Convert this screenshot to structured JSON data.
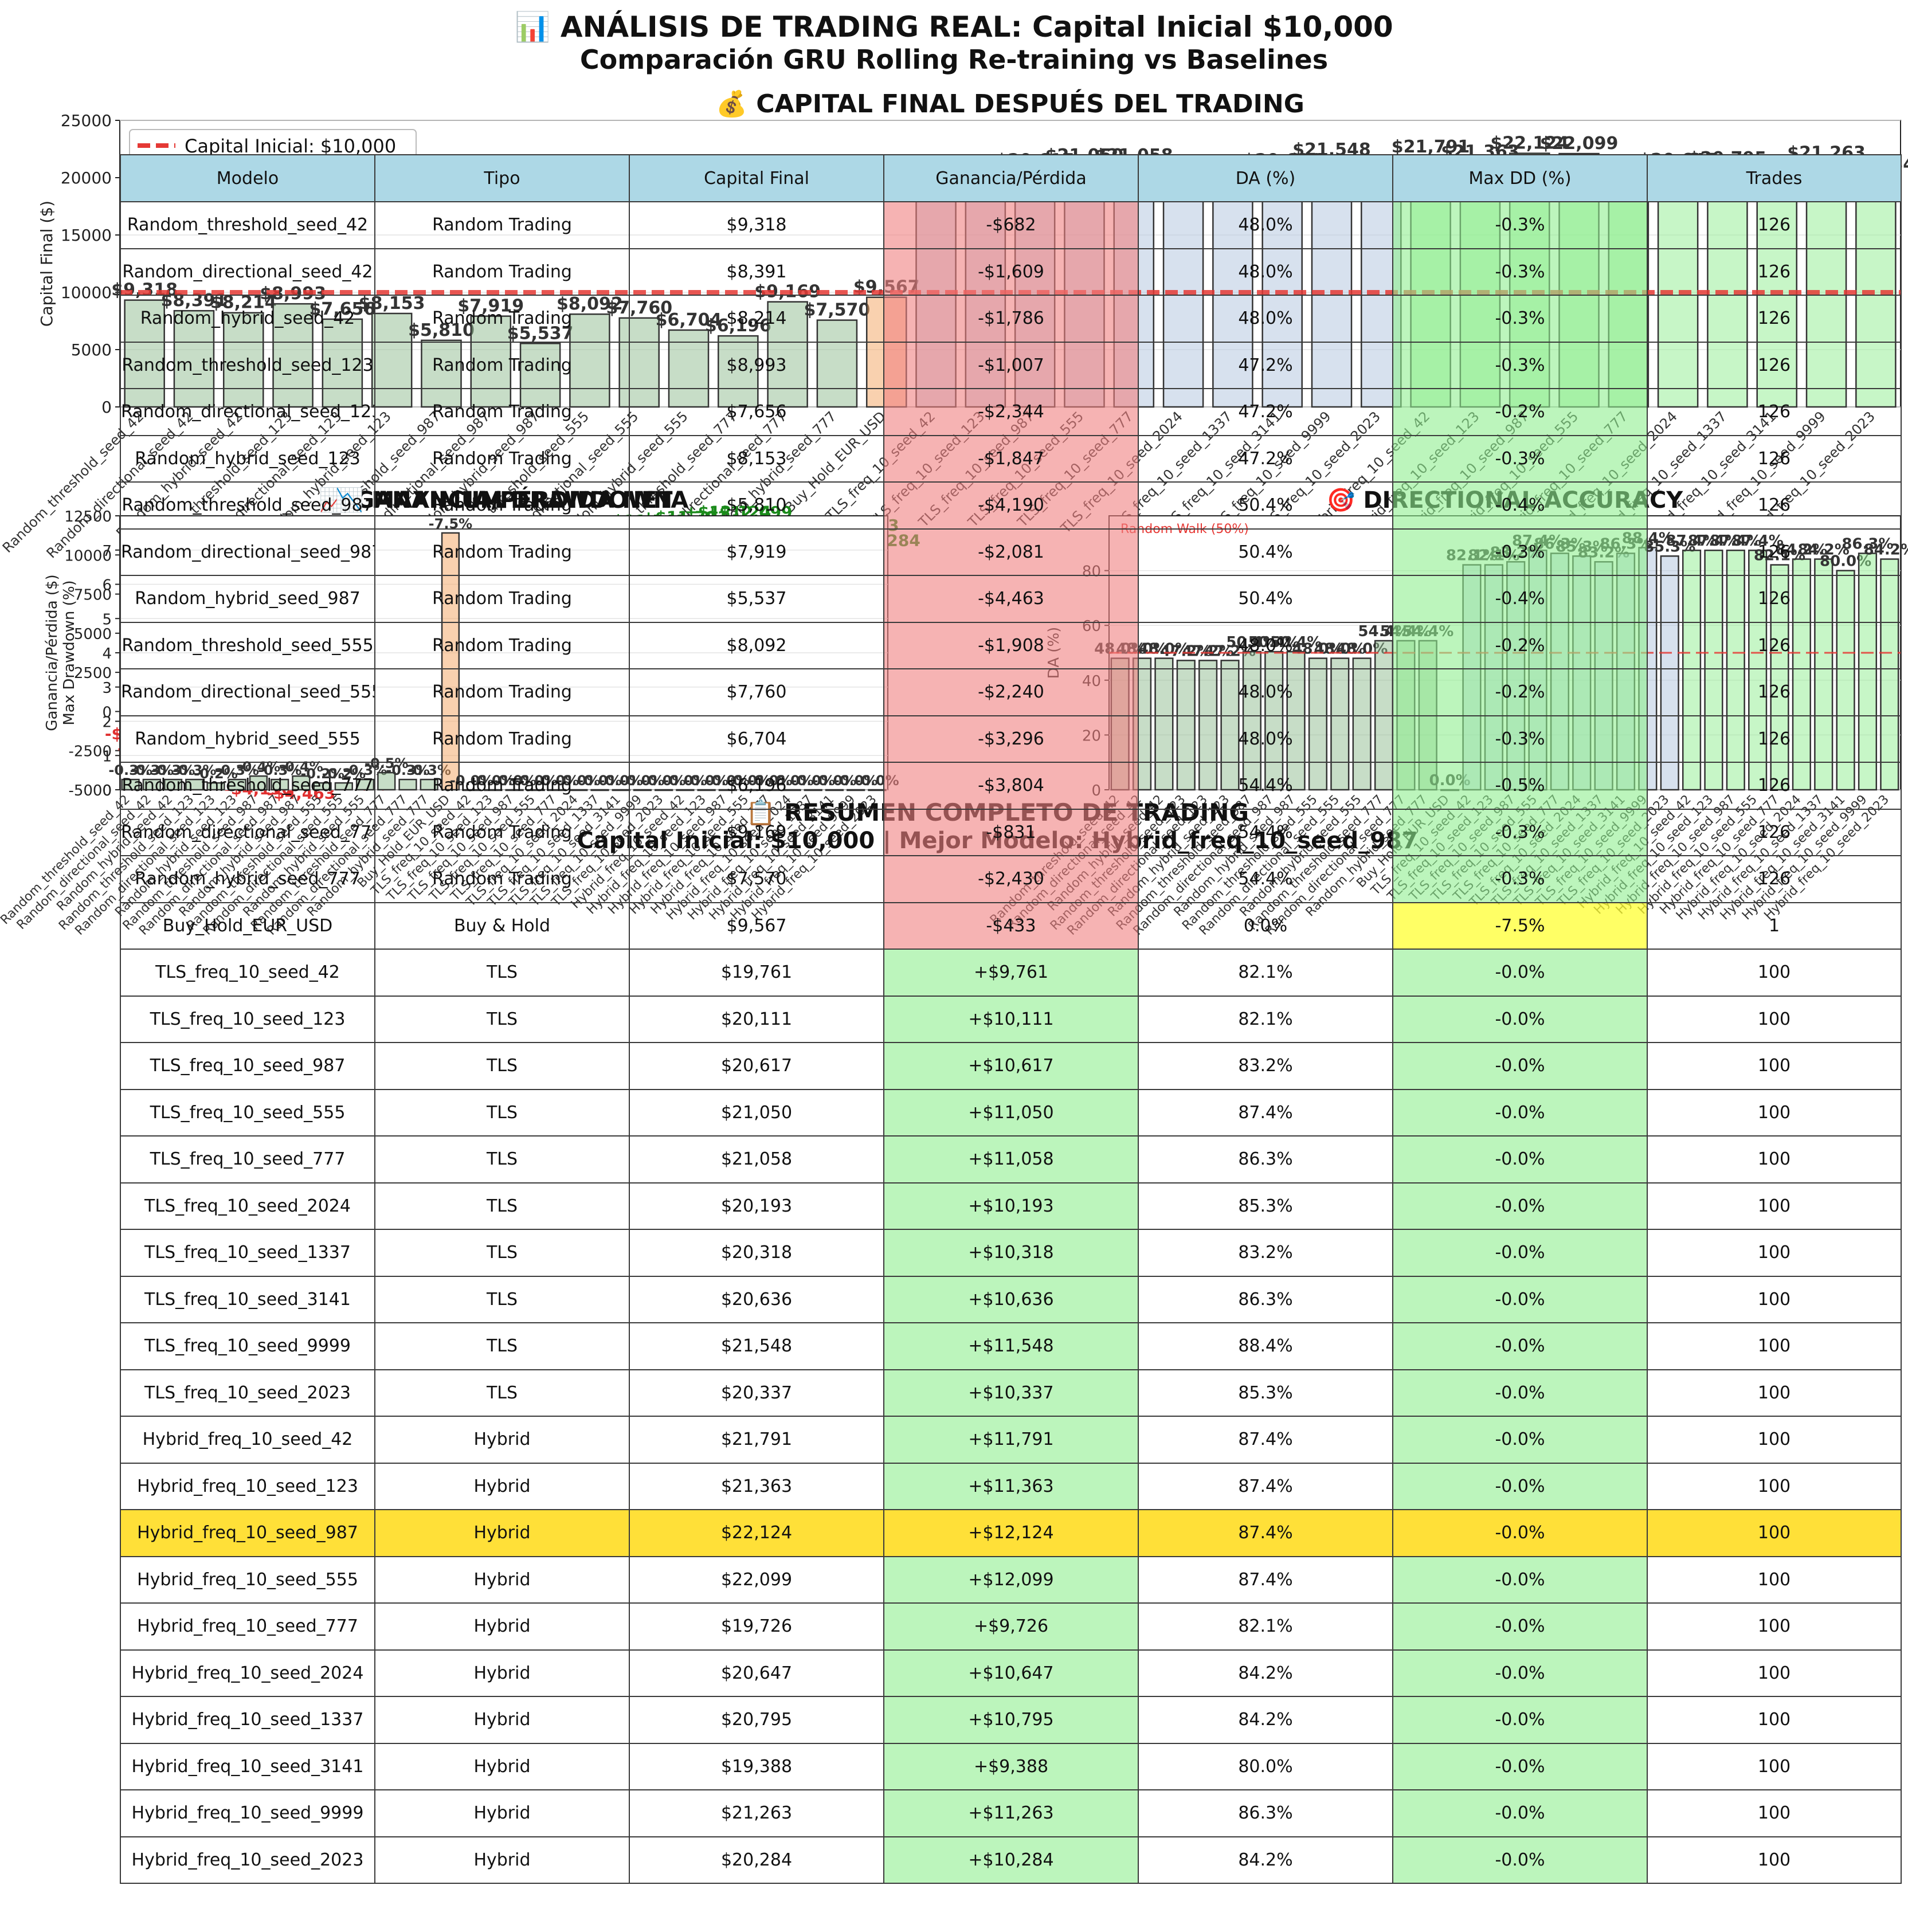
{
  "header": {
    "title": "📊 ANÁLISIS DE TRADING REAL: Capital Inicial $10,000",
    "subtitle": "Comparación GRU Rolling Re-training vs Baselines"
  },
  "colors": {
    "random": "#8fbc8f",
    "buy_hold": "#f4a460",
    "tls": "#b0c4de",
    "hybrid": "#90ee90",
    "loss_text": "#e03030",
    "gain_text": "#1a8a1a",
    "header_row": "#add8e6",
    "loss_cell": "#f08080",
    "gain_cell": "#90ee90",
    "best_row": "#ffd700",
    "buyhold_dd": "#ffff33"
  },
  "chart_data": [
    {
      "type": "bar",
      "title": "💰 CAPITAL FINAL DESPUÉS DEL TRADING",
      "ylabel": "Capital Final ($)",
      "ylim": [
        0,
        25000
      ],
      "yticks": [
        0,
        5000,
        10000,
        15000,
        20000,
        25000
      ],
      "reference_line": {
        "value": 10000,
        "label": "Capital Inicial: $10,000"
      },
      "legend_position": "upper-left",
      "grid": true,
      "categories": [
        "Random_threshold_seed_42",
        "Random_directional_seed_42",
        "Random_hybrid_seed_42",
        "Random_threshold_seed_123",
        "Random_directional_seed_123",
        "Random_hybrid_seed_123",
        "Random_threshold_seed_987",
        "Random_directional_seed_987",
        "Random_hybrid_seed_987",
        "Random_threshold_seed_555",
        "Random_directional_seed_555",
        "Random_hybrid_seed_555",
        "Random_threshold_seed_777",
        "Random_directional_seed_777",
        "Random_hybrid_seed_777",
        "Buy_Hold_EUR_USD",
        "TLS_freq_10_seed_42",
        "TLS_freq_10_seed_123",
        "TLS_freq_10_seed_987",
        "TLS_freq_10_seed_555",
        "TLS_freq_10_seed_777",
        "TLS_freq_10_seed_2024",
        "TLS_freq_10_seed_1337",
        "TLS_freq_10_seed_3141",
        "TLS_freq_10_seed_9999",
        "TLS_freq_10_seed_2023",
        "Hybrid_freq_10_seed_42",
        "Hybrid_freq_10_seed_123",
        "Hybrid_freq_10_seed_987",
        "Hybrid_freq_10_seed_555",
        "Hybrid_freq_10_seed_777",
        "Hybrid_freq_10_seed_2024",
        "Hybrid_freq_10_seed_1337",
        "Hybrid_freq_10_seed_3141",
        "Hybrid_freq_10_seed_9999",
        "Hybrid_freq_10_seed_2023"
      ],
      "values": [
        9318,
        8391,
        8214,
        8993,
        7656,
        8153,
        5810,
        7919,
        5537,
        8092,
        7760,
        6704,
        6196,
        9169,
        7570,
        9567,
        19761,
        20111,
        20617,
        21050,
        21058,
        20193,
        20318,
        20636,
        21548,
        20337,
        21791,
        21363,
        22124,
        22099,
        19726,
        20647,
        20795,
        19388,
        21263,
        20284
      ]
    },
    {
      "type": "bar",
      "title": "📈 GANANCIA/PÉRDIDA NETA",
      "ylabel": "Ganancia/Pérdida ($)",
      "ylim": [
        -5000,
        12500
      ],
      "yticks": [
        -5000,
        -2500,
        0,
        2500,
        5000,
        7500,
        10000,
        12500
      ],
      "values": [
        -682,
        -1609,
        -1786,
        -1007,
        -2344,
        -1847,
        -4190,
        -2081,
        -4463,
        -1908,
        -2240,
        -3296,
        -3804,
        -831,
        -2430,
        -433,
        9761,
        10111,
        10617,
        11050,
        11058,
        10193,
        10318,
        10636,
        11548,
        10337,
        11791,
        11363,
        12124,
        12099,
        9726,
        10647,
        10795,
        9388,
        11263,
        10284
      ]
    },
    {
      "type": "bar",
      "title": "📉 MAXIMUM DRAWDOWN",
      "ylabel": "Max Drawdown (%)",
      "ylim": [
        0,
        8
      ],
      "yticks": [
        0,
        1,
        2,
        3,
        4,
        5,
        6,
        7
      ],
      "values": [
        0.3,
        0.3,
        0.3,
        0.3,
        0.2,
        0.3,
        0.4,
        0.3,
        0.4,
        0.2,
        0.2,
        0.3,
        0.5,
        0.3,
        0.3,
        7.5,
        0.0,
        0.0,
        0.0,
        0.0,
        0.0,
        0.0,
        0.0,
        0.0,
        0.0,
        0.0,
        0.0,
        0.0,
        0.0,
        0.0,
        0.0,
        0.0,
        0.0,
        0.0,
        0.0,
        0.0
      ]
    },
    {
      "type": "bar",
      "title": "🎯 DIRECTIONAL ACCURACY",
      "ylabel": "DA (%)",
      "ylim": [
        0,
        100
      ],
      "yticks": [
        0,
        20,
        40,
        60,
        80
      ],
      "reference_line": {
        "value": 50,
        "label": "Random Walk (50%)"
      },
      "values": [
        48.0,
        48.0,
        48.0,
        47.2,
        47.2,
        47.2,
        50.4,
        50.4,
        50.4,
        48.0,
        48.0,
        48.0,
        54.4,
        54.4,
        54.4,
        0.0,
        82.1,
        82.1,
        83.2,
        87.4,
        86.3,
        85.3,
        83.2,
        86.3,
        88.4,
        85.3,
        87.4,
        87.4,
        87.4,
        87.4,
        82.1,
        84.2,
        84.2,
        80.0,
        86.3,
        84.2
      ]
    },
    {
      "type": "table",
      "title": "📋 RESUMEN COMPLETO DE TRADING",
      "subtitle": "Capital Inicial: $10,000 | Mejor Modelo: Hybrid_freq_10_seed_987",
      "columns": [
        "Modelo",
        "Tipo",
        "Capital Final",
        "Ganancia/Pérdida",
        "DA (%)",
        "Max DD (%)",
        "Trades"
      ],
      "best_row": 28,
      "rows": [
        [
          "Random_threshold_seed_42",
          "Random Trading",
          "$9,318",
          "-$682",
          "48.0%",
          "-0.3%",
          "126"
        ],
        [
          "Random_directional_seed_42",
          "Random Trading",
          "$8,391",
          "-$1,609",
          "48.0%",
          "-0.3%",
          "126"
        ],
        [
          "Random_hybrid_seed_42",
          "Random Trading",
          "$8,214",
          "-$1,786",
          "48.0%",
          "-0.3%",
          "126"
        ],
        [
          "Random_threshold_seed_123",
          "Random Trading",
          "$8,993",
          "-$1,007",
          "47.2%",
          "-0.3%",
          "126"
        ],
        [
          "Random_directional_seed_123",
          "Random Trading",
          "$7,656",
          "-$2,344",
          "47.2%",
          "-0.2%",
          "126"
        ],
        [
          "Random_hybrid_seed_123",
          "Random Trading",
          "$8,153",
          "-$1,847",
          "47.2%",
          "-0.3%",
          "126"
        ],
        [
          "Random_threshold_seed_987",
          "Random Trading",
          "$5,810",
          "-$4,190",
          "50.4%",
          "-0.4%",
          "126"
        ],
        [
          "Random_directional_seed_987",
          "Random Trading",
          "$7,919",
          "-$2,081",
          "50.4%",
          "-0.3%",
          "126"
        ],
        [
          "Random_hybrid_seed_987",
          "Random Trading",
          "$5,537",
          "-$4,463",
          "50.4%",
          "-0.4%",
          "126"
        ],
        [
          "Random_threshold_seed_555",
          "Random Trading",
          "$8,092",
          "-$1,908",
          "48.0%",
          "-0.2%",
          "126"
        ],
        [
          "Random_directional_seed_555",
          "Random Trading",
          "$7,760",
          "-$2,240",
          "48.0%",
          "-0.2%",
          "126"
        ],
        [
          "Random_hybrid_seed_555",
          "Random Trading",
          "$6,704",
          "-$3,296",
          "48.0%",
          "-0.3%",
          "126"
        ],
        [
          "Random_threshold_seed_777",
          "Random Trading",
          "$6,196",
          "-$3,804",
          "54.4%",
          "-0.5%",
          "126"
        ],
        [
          "Random_directional_seed_777",
          "Random Trading",
          "$9,169",
          "-$831",
          "54.4%",
          "-0.3%",
          "126"
        ],
        [
          "Random_hybrid_seed_777",
          "Random Trading",
          "$7,570",
          "-$2,430",
          "54.4%",
          "-0.3%",
          "126"
        ],
        [
          "Buy_Hold_EUR_USD",
          "Buy & Hold",
          "$9,567",
          "-$433",
          "0.0%",
          "-7.5%",
          "1"
        ],
        [
          "TLS_freq_10_seed_42",
          "TLS",
          "$19,761",
          "+$9,761",
          "82.1%",
          "-0.0%",
          "100"
        ],
        [
          "TLS_freq_10_seed_123",
          "TLS",
          "$20,111",
          "+$10,111",
          "82.1%",
          "-0.0%",
          "100"
        ],
        [
          "TLS_freq_10_seed_987",
          "TLS",
          "$20,617",
          "+$10,617",
          "83.2%",
          "-0.0%",
          "100"
        ],
        [
          "TLS_freq_10_seed_555",
          "TLS",
          "$21,050",
          "+$11,050",
          "87.4%",
          "-0.0%",
          "100"
        ],
        [
          "TLS_freq_10_seed_777",
          "TLS",
          "$21,058",
          "+$11,058",
          "86.3%",
          "-0.0%",
          "100"
        ],
        [
          "TLS_freq_10_seed_2024",
          "TLS",
          "$20,193",
          "+$10,193",
          "85.3%",
          "-0.0%",
          "100"
        ],
        [
          "TLS_freq_10_seed_1337",
          "TLS",
          "$20,318",
          "+$10,318",
          "83.2%",
          "-0.0%",
          "100"
        ],
        [
          "TLS_freq_10_seed_3141",
          "TLS",
          "$20,636",
          "+$10,636",
          "86.3%",
          "-0.0%",
          "100"
        ],
        [
          "TLS_freq_10_seed_9999",
          "TLS",
          "$21,548",
          "+$11,548",
          "88.4%",
          "-0.0%",
          "100"
        ],
        [
          "TLS_freq_10_seed_2023",
          "TLS",
          "$20,337",
          "+$10,337",
          "85.3%",
          "-0.0%",
          "100"
        ],
        [
          "Hybrid_freq_10_seed_42",
          "Hybrid",
          "$21,791",
          "+$11,791",
          "87.4%",
          "-0.0%",
          "100"
        ],
        [
          "Hybrid_freq_10_seed_123",
          "Hybrid",
          "$21,363",
          "+$11,363",
          "87.4%",
          "-0.0%",
          "100"
        ],
        [
          "Hybrid_freq_10_seed_987",
          "Hybrid",
          "$22,124",
          "+$12,124",
          "87.4%",
          "-0.0%",
          "100"
        ],
        [
          "Hybrid_freq_10_seed_555",
          "Hybrid",
          "$22,099",
          "+$12,099",
          "87.4%",
          "-0.0%",
          "100"
        ],
        [
          "Hybrid_freq_10_seed_777",
          "Hybrid",
          "$19,726",
          "+$9,726",
          "82.1%",
          "-0.0%",
          "100"
        ],
        [
          "Hybrid_freq_10_seed_2024",
          "Hybrid",
          "$20,647",
          "+$10,647",
          "84.2%",
          "-0.0%",
          "100"
        ],
        [
          "Hybrid_freq_10_seed_1337",
          "Hybrid",
          "$20,795",
          "+$10,795",
          "84.2%",
          "-0.0%",
          "100"
        ],
        [
          "Hybrid_freq_10_seed_3141",
          "Hybrid",
          "$19,388",
          "+$9,388",
          "80.0%",
          "-0.0%",
          "100"
        ],
        [
          "Hybrid_freq_10_seed_9999",
          "Hybrid",
          "$21,263",
          "+$11,263",
          "86.3%",
          "-0.0%",
          "100"
        ],
        [
          "Hybrid_freq_10_seed_2023",
          "Hybrid",
          "$20,284",
          "+$10,284",
          "84.2%",
          "-0.0%",
          "100"
        ]
      ]
    }
  ]
}
